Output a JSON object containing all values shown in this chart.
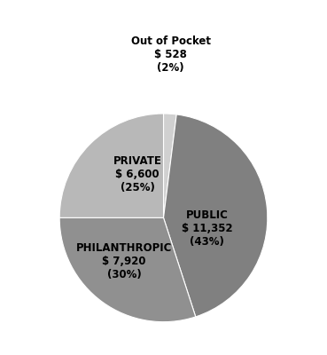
{
  "slices": [
    {
      "label": "Out of Pocket",
      "value": 528,
      "pct": 2,
      "amount": "$ 528",
      "color": "#d0d0d0"
    },
    {
      "label": "PUBLIC",
      "value": 11352,
      "pct": 43,
      "amount": "$ 11,352",
      "color": "#808080"
    },
    {
      "label": "PHILANTHROPIC",
      "value": 7920,
      "pct": 30,
      "amount": "$ 7,920",
      "color": "#909090"
    },
    {
      "label": "PRIVATE",
      "value": 6600,
      "pct": 25,
      "amount": "$ 6,600",
      "color": "#b8b8b8"
    }
  ],
  "background_color": "#ffffff",
  "text_color": "#000000",
  "label_fontsize": 8.5,
  "label_fontweight": "bold",
  "startangle": 90,
  "figsize": [
    3.69,
    4.0
  ],
  "dpi": 100
}
